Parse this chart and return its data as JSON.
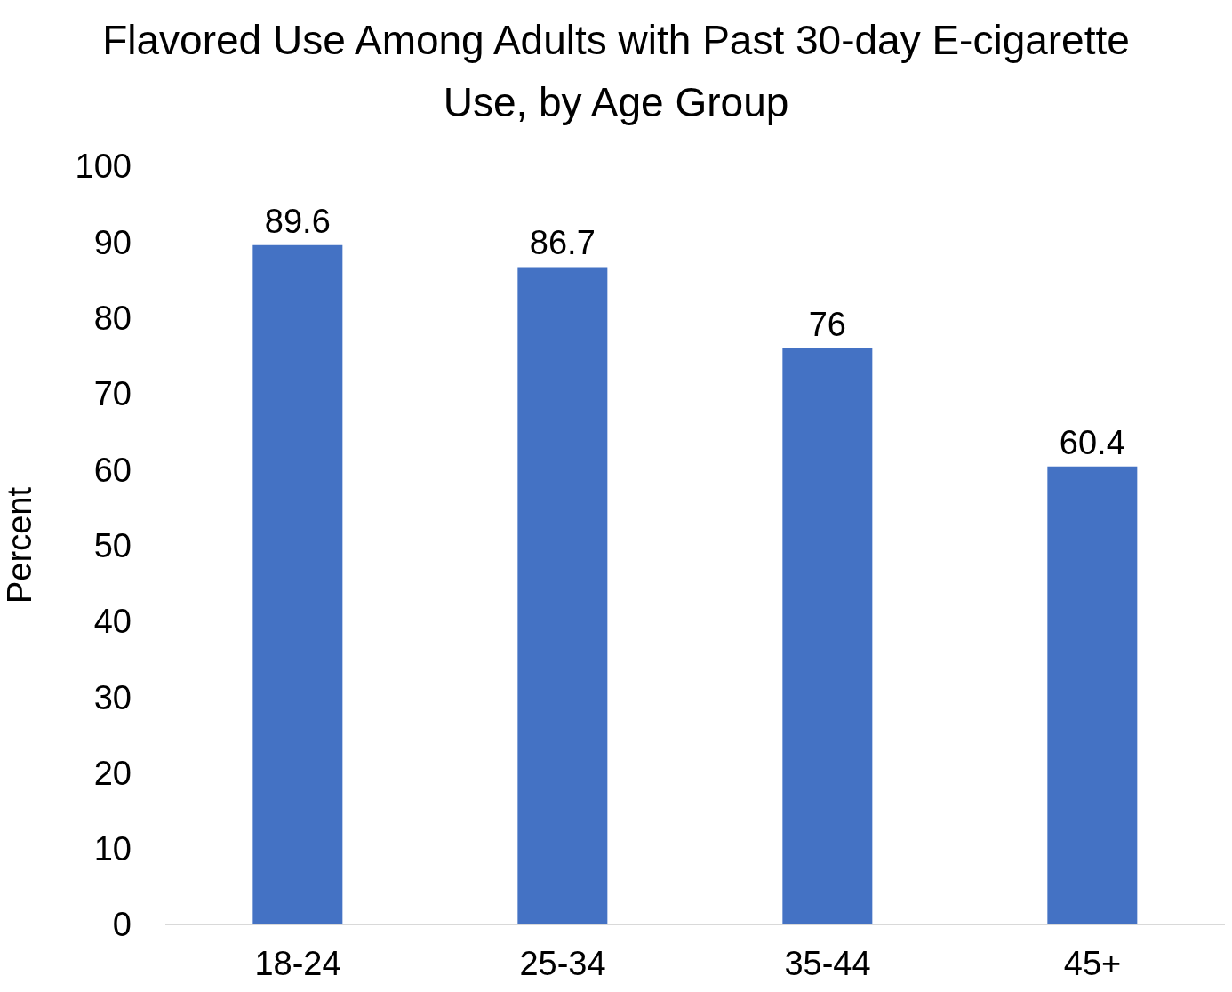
{
  "chart_data": {
    "type": "bar",
    "title": "Flavored Use Among Adults with Past 30-day E-cigarette Use, by Age Group",
    "ylabel": "Percent",
    "categories": [
      "18-24",
      "25-34",
      "35-44",
      "45+"
    ],
    "values": [
      89.6,
      86.7,
      76,
      60.4
    ],
    "color": "#4472c4",
    "ylim": [
      0,
      100
    ],
    "yticks": [
      0,
      10,
      20,
      30,
      40,
      50,
      60,
      70,
      80,
      90,
      100
    ],
    "grid": false,
    "data_labels": true
  }
}
